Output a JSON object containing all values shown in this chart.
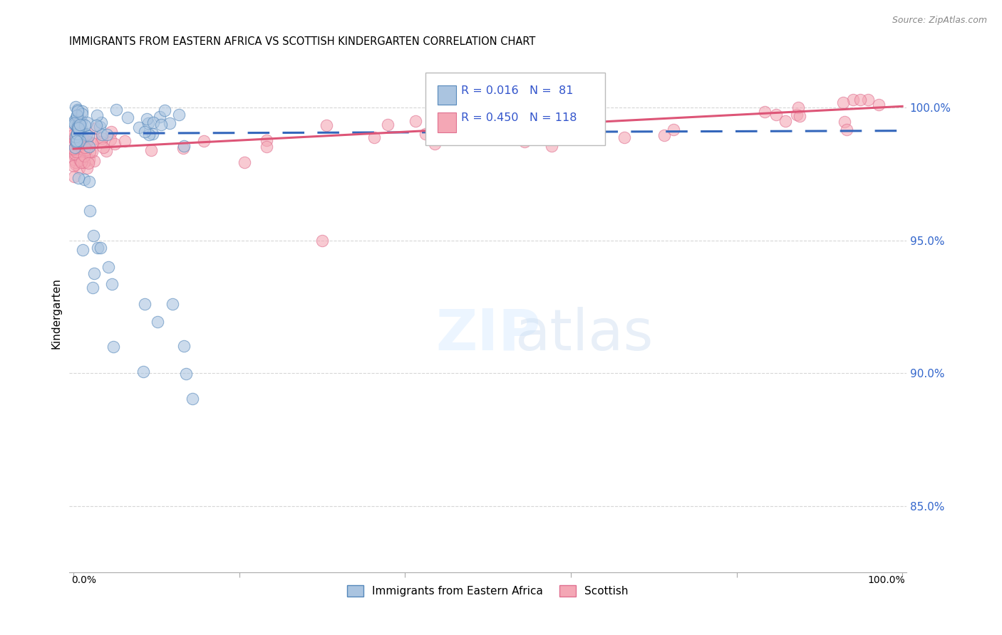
{
  "title": "IMMIGRANTS FROM EASTERN AFRICA VS SCOTTISH KINDERGARTEN CORRELATION CHART",
  "source": "Source: ZipAtlas.com",
  "ylabel": "Kindergarten",
  "legend_blue_label": "Immigrants from Eastern Africa",
  "legend_pink_label": "Scottish",
  "r_blue": 0.016,
  "n_blue": 81,
  "r_pink": 0.45,
  "n_pink": 118,
  "blue_color": "#aac4e0",
  "pink_color": "#f4a7b5",
  "blue_edge_color": "#5588bb",
  "pink_edge_color": "#e07090",
  "blue_line_color": "#3366bb",
  "pink_line_color": "#dd5577",
  "grid_color": "#cccccc",
  "ytick_color": "#3366cc",
  "ytick_labels": [
    "85.0%",
    "90.0%",
    "95.0%",
    "100.0%"
  ],
  "ytick_values": [
    0.85,
    0.9,
    0.95,
    1.0
  ],
  "xlim": [
    -0.005,
    1.005
  ],
  "ylim": [
    0.825,
    1.02
  ],
  "blue_line_y0": 0.9903,
  "blue_line_y1": 0.9913,
  "pink_line_y0": 0.9845,
  "pink_line_y1": 1.0005
}
